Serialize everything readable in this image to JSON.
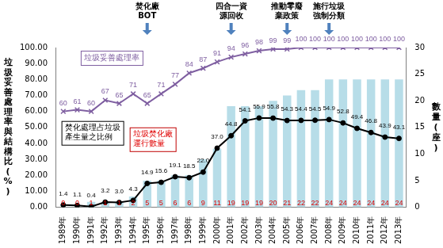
{
  "chart_data": {
    "type": "bar",
    "categories": [
      "1989年",
      "1990年",
      "1991年",
      "1992年",
      "1993年",
      "1994年",
      "1995年",
      "1996年",
      "1997年",
      "1998年",
      "1999年",
      "2000年",
      "2001年",
      "2002年",
      "2003年",
      "2004年",
      "2005年",
      "2006年",
      "2007年",
      "2008年",
      "2009年",
      "2010年",
      "2011年",
      "2012年",
      "2013年"
    ],
    "ylabel": "垃圾妥善處理率與結構比(%)",
    "y2label": "數量(座)",
    "ylim": [
      0,
      100
    ],
    "yticks": [
      {
        "value": 0,
        "label": "0.00"
      },
      {
        "value": 10,
        "label": "10.00"
      },
      {
        "value": 20,
        "label": "20.00"
      },
      {
        "value": 30,
        "label": "30.00"
      },
      {
        "value": 40,
        "label": "40.00"
      },
      {
        "value": 50,
        "label": "50.00"
      },
      {
        "value": 60,
        "label": "60.00"
      },
      {
        "value": 70,
        "label": "70.00"
      },
      {
        "value": 80,
        "label": "80.00"
      },
      {
        "value": 90,
        "label": "90.00"
      },
      {
        "value": 100,
        "label": "100.00"
      }
    ],
    "y2lim": [
      0,
      30
    ],
    "y2ticks": [
      0,
      5,
      10,
      15,
      20,
      25,
      30
    ],
    "grid": false,
    "data_labels": true,
    "annotations": [
      {
        "x": "1995年",
        "text": [
          "焚化廠",
          "BOT"
        ]
      },
      {
        "x": "2001年",
        "text": [
          "四合一資",
          "源回收"
        ]
      },
      {
        "x": "2005年",
        "text": [
          "推動零廢",
          "棄政策"
        ]
      },
      {
        "x": "2008年",
        "text": [
          "施行垃圾",
          "強制分類"
        ]
      }
    ],
    "series": [
      {
        "name": "垃圾焚化廠運行數量",
        "type": "bar",
        "axis": "y2",
        "color": "#b7dde8",
        "values": [
          0,
          0,
          1,
          1,
          1,
          2,
          5,
          5,
          6,
          6,
          9,
          11,
          19,
          19,
          19,
          20,
          21,
          22,
          22,
          24,
          24,
          24,
          24,
          24,
          24
        ]
      },
      {
        "name": "垃圾妥善處理率",
        "type": "line",
        "color": "#7f5fa1",
        "marker": "x",
        "values": [
          60,
          61,
          60,
          67,
          65,
          71,
          65,
          71,
          77,
          84,
          87,
          91,
          94,
          96,
          98,
          99,
          99,
          100,
          100,
          100,
          100,
          100,
          100,
          100,
          100
        ]
      },
      {
        "name": "焚化處理占垃圾產生量之比例",
        "type": "line",
        "color": "#000000",
        "marker": "circle",
        "values": [
          1.4,
          1.1,
          0.4,
          3.2,
          3.0,
          4.3,
          14.9,
          15.6,
          19.1,
          18.5,
          22.0,
          37.0,
          44.8,
          54.1,
          55.9,
          55.8,
          54.3,
          54.4,
          54.5,
          54.9,
          52.8,
          49.4,
          46.8,
          43.9,
          43.1
        ],
        "value_labels": [
          "1.4",
          "1.1",
          "0.4",
          "3.2",
          "3.0",
          "4.3",
          "14.9",
          "15.6",
          "19.1",
          "18.5",
          "22.0",
          "37.0",
          "44.8",
          "54.1",
          "55.9",
          "55.8",
          "54.3",
          "54.4",
          "54.5",
          "54.9",
          "52.8",
          "49.4",
          "46.8",
          "43.9",
          "43.1"
        ]
      }
    ]
  }
}
